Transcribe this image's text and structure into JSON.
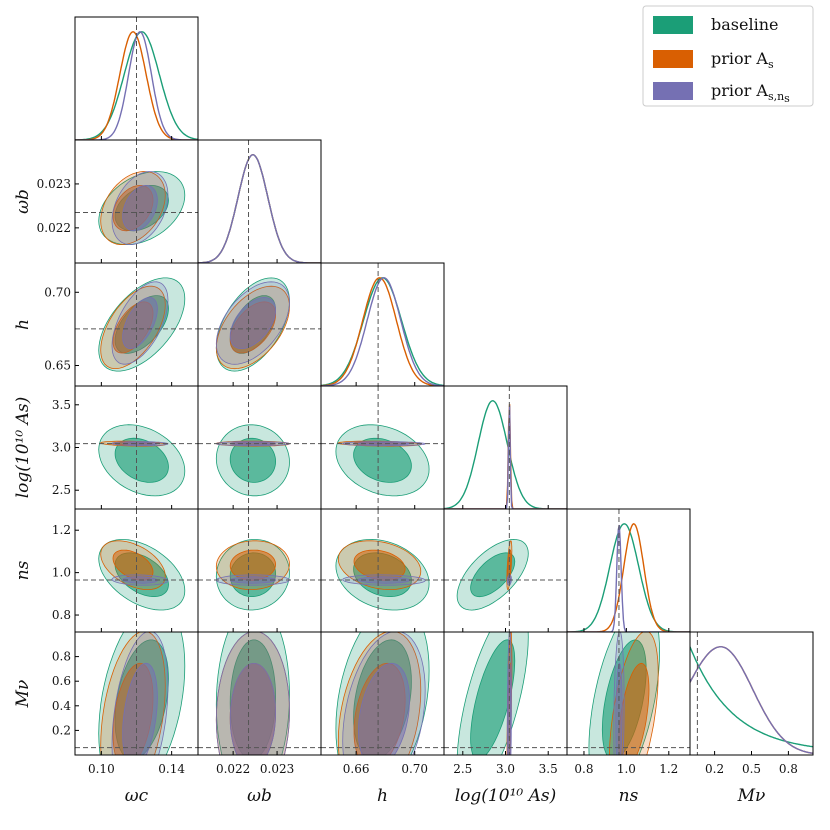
{
  "chart_data": {
    "type": "corner",
    "title": "",
    "parameters": [
      {
        "key": "omega_c",
        "label": "ωc",
        "sub": "c",
        "range": [
          0.085,
          0.155
        ],
        "ticks": [
          0.1,
          0.14
        ],
        "tick_labels": [
          "0.10",
          "0.14"
        ],
        "truth": 0.12
      },
      {
        "key": "omega_b",
        "label": "ωb",
        "sub": "b",
        "range": [
          0.0212,
          0.024
        ],
        "ticks": [
          0.022,
          0.023
        ],
        "tick_labels": [
          "0.022",
          "0.023"
        ],
        "truth": 0.02235
      },
      {
        "key": "h",
        "label": "h",
        "sub": "",
        "range": [
          0.636,
          0.72
        ],
        "ticks": [
          0.66,
          0.7
        ],
        "tick_labels": [
          "0.66",
          "0.70"
        ],
        "ytick_labels": [
          "0.65",
          "0.70"
        ],
        "yticks": [
          0.65,
          0.7
        ],
        "truth": 0.675
      },
      {
        "key": "logA",
        "label": "log(10¹⁰ As)",
        "sub": "s",
        "range": [
          2.28,
          3.72
        ],
        "ticks": [
          2.5,
          3.0,
          3.5
        ],
        "tick_labels": [
          "2.5",
          "3.0",
          "3.5"
        ],
        "truth": 3.045
      },
      {
        "key": "ns",
        "label": "ns",
        "sub": "s",
        "range": [
          0.72,
          1.3
        ],
        "ticks": [
          0.8,
          1.0,
          1.2
        ],
        "tick_labels": [
          "0.8",
          "1.0",
          "1.2"
        ],
        "ytick_labels": [
          "0.8",
          "1.0",
          "1.2"
        ],
        "truth": 0.965
      },
      {
        "key": "Mnu",
        "label": "Mν",
        "sub": "ν",
        "range": [
          0.0,
          1.0
        ],
        "ticks": [
          0.2,
          0.5,
          0.8
        ],
        "tick_labels": [
          "0.2",
          "0.5",
          "0.8"
        ],
        "yticks": [
          0.2,
          0.4,
          0.6,
          0.8
        ],
        "ytick_labels": [
          "0.2",
          "0.4",
          "0.6",
          "0.8"
        ],
        "truth": 0.06
      }
    ],
    "series": [
      {
        "name": "baseline",
        "color": "#1b9e77",
        "mean": [
          0.123,
          0.02245,
          0.678,
          2.85,
          0.99,
          0.0
        ],
        "sigma": [
          0.01,
          0.00034,
          0.013,
          0.17,
          0.068,
          0.25
        ],
        "mnu_peak": 0.0
      },
      {
        "name": "prior A_s",
        "color": "#d95f02",
        "mean": [
          0.118,
          0.02245,
          0.676,
          3.045,
          1.035,
          0.25
        ],
        "sigma": [
          0.0075,
          0.00034,
          0.0115,
          0.012,
          0.047,
          0.22
        ],
        "mnu_peak": 0.25
      },
      {
        "name": "prior A_s,n_s",
        "color": "#7570b3",
        "mean": [
          0.122,
          0.02245,
          0.679,
          3.045,
          0.965,
          0.25
        ],
        "sigma": [
          0.0065,
          0.00034,
          0.0115,
          0.01,
          0.01,
          0.2
        ],
        "mnu_peak": 0.25
      }
    ],
    "legend": {
      "placement": "top-right",
      "entries": [
        "baseline",
        "prior A",
        "prior A"
      ],
      "entry_subs": [
        "",
        "s",
        "s,n"
      ],
      "entry_tail": [
        "",
        "",
        "s"
      ]
    }
  }
}
